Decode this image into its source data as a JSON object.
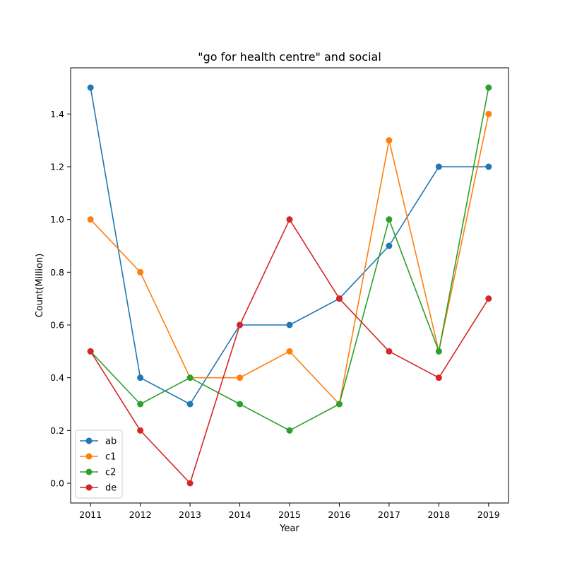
{
  "chart_data": {
    "type": "line",
    "title": "\"go for health centre\" and social",
    "xlabel": "Year",
    "ylabel": "Count(Million)",
    "x": [
      "2011",
      "2012",
      "2013",
      "2014",
      "2015",
      "2016",
      "2017",
      "2018",
      "2019"
    ],
    "ylim": [
      -0.075,
      1.575
    ],
    "yticks": [
      "0.0",
      "0.2",
      "0.4",
      "0.6",
      "0.8",
      "1.0",
      "1.2",
      "1.4"
    ],
    "grid": false,
    "legend_position": "lower-left",
    "markers": true,
    "series": [
      {
        "name": "ab",
        "color": "#1f77b4",
        "values": [
          1.5,
          0.4,
          0.3,
          0.6,
          0.6,
          0.7,
          0.9,
          1.2,
          1.2
        ]
      },
      {
        "name": "c1",
        "color": "#ff7f0e",
        "values": [
          1.0,
          0.8,
          0.4,
          0.4,
          0.5,
          0.3,
          1.3,
          0.5,
          1.4
        ]
      },
      {
        "name": "c2",
        "color": "#2ca02c",
        "values": [
          0.5,
          0.3,
          0.4,
          0.3,
          0.2,
          0.3,
          1.0,
          0.5,
          1.5
        ]
      },
      {
        "name": "de",
        "color": "#d62728",
        "values": [
          0.5,
          0.2,
          0.0,
          0.6,
          1.0,
          0.7,
          0.5,
          0.4,
          0.7
        ]
      }
    ]
  }
}
